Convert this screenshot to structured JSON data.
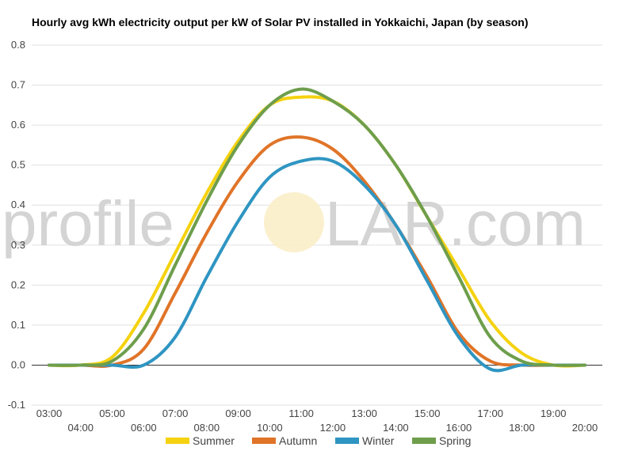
{
  "chart_data": {
    "type": "line",
    "title": "Hourly avg kWh electricity output per kW of Solar PV installed in Yokkaichi, Japan (by season)",
    "watermark": {
      "left": "profile",
      "right": "LAR.com"
    },
    "xlabel": "",
    "ylabel": "",
    "ylim": [
      -0.1,
      0.8
    ],
    "yticks": [
      "-0.1",
      "0.0",
      "0.1",
      "0.2",
      "0.3",
      "0.4",
      "0.5",
      "0.6",
      "0.7",
      "0.8"
    ],
    "xlim": [
      3,
      20
    ],
    "xticks_upper": [
      "03:00",
      "05:00",
      "07:00",
      "09:00",
      "11:00",
      "13:00",
      "15:00",
      "17:00",
      "19:00"
    ],
    "xticks_lower": [
      "04:00",
      "06:00",
      "08:00",
      "10:00",
      "12:00",
      "14:00",
      "16:00",
      "18:00",
      "20:00"
    ],
    "grid": true,
    "legend_position": "bottom",
    "x": [
      3,
      4,
      5,
      6,
      7,
      8,
      9,
      10,
      11,
      12,
      13,
      14,
      15,
      16,
      17,
      18,
      19,
      20
    ],
    "series": [
      {
        "name": "Summer",
        "color": "#f5d20f",
        "values": [
          0.0,
          0.0,
          0.02,
          0.13,
          0.28,
          0.43,
          0.56,
          0.65,
          0.67,
          0.66,
          0.6,
          0.5,
          0.37,
          0.24,
          0.11,
          0.03,
          0.0,
          0.0
        ]
      },
      {
        "name": "Autumn",
        "color": "#e07428",
        "values": [
          0.0,
          0.0,
          0.0,
          0.04,
          0.18,
          0.33,
          0.46,
          0.55,
          0.57,
          0.54,
          0.46,
          0.35,
          0.22,
          0.08,
          0.01,
          0.0,
          0.0,
          0.0
        ]
      },
      {
        "name": "Winter",
        "color": "#2f95c2",
        "values": [
          0.0,
          0.0,
          0.0,
          0.0,
          0.07,
          0.22,
          0.36,
          0.47,
          0.51,
          0.51,
          0.45,
          0.35,
          0.21,
          0.07,
          -0.01,
          0.0,
          0.0,
          0.0
        ]
      },
      {
        "name": "Spring",
        "color": "#6e9e4c",
        "values": [
          0.0,
          0.0,
          0.01,
          0.09,
          0.25,
          0.41,
          0.55,
          0.65,
          0.69,
          0.66,
          0.6,
          0.5,
          0.37,
          0.22,
          0.07,
          0.01,
          0.0,
          0.0
        ]
      }
    ]
  }
}
